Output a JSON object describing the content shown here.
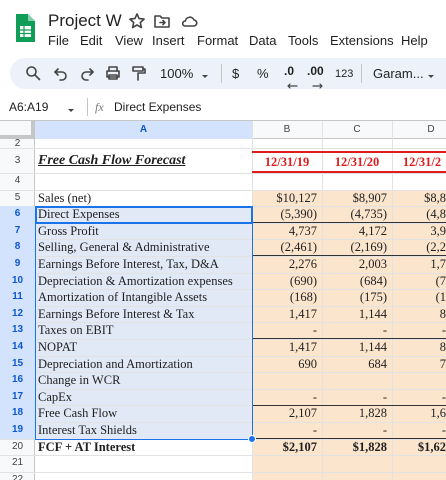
{
  "app": {
    "title": "Project W",
    "menu": [
      "File",
      "Edit",
      "View",
      "Insert",
      "Format",
      "Data",
      "Tools",
      "Extensions",
      "Help"
    ],
    "toolbar": {
      "zoom": "100%",
      "currency": "$",
      "percent": "%",
      "decrease_decimal": ".0",
      "increase_decimal": ".00",
      "number_format": "123",
      "font": "Garam..."
    },
    "name_box": "A6:A19",
    "formula_icon": "fx",
    "formula": "Direct Expenses"
  },
  "sheet": {
    "columns": [
      "A",
      "B",
      "C",
      "D"
    ],
    "row_numbers": [
      2,
      3,
      4,
      5,
      6,
      7,
      8,
      9,
      10,
      11,
      12,
      13,
      14,
      15,
      16,
      17,
      18,
      19,
      20,
      21,
      22
    ],
    "title": "Free Cash Flow Forecast",
    "dates": [
      "12/31/19",
      "12/31/20",
      "12/31/2"
    ],
    "rows": [
      {
        "label": "Sales (net)",
        "values": [
          "$10,127",
          "$8,907",
          "$8,8"
        ]
      },
      {
        "label": "Direct Expenses",
        "values": [
          "(5,390)",
          "(4,735)",
          "(4,8"
        ]
      },
      {
        "label": "Gross Profit",
        "values": [
          "4,737",
          "4,172",
          "3,9"
        ]
      },
      {
        "label": "Selling, General & Administrative",
        "values": [
          "(2,461)",
          "(2,169)",
          "(2,2"
        ]
      },
      {
        "label": "Earnings Before Interest, Tax, D&A",
        "values": [
          "2,276",
          "2,003",
          "1,7"
        ]
      },
      {
        "label": "Depreciation & Amortization expenses",
        "values": [
          "(690)",
          "(684)",
          "(7"
        ]
      },
      {
        "label": "Amortization of Intangible Assets",
        "values": [
          "(168)",
          "(175)",
          "(1"
        ]
      },
      {
        "label": "Earnings Before Interest & Tax",
        "values": [
          "1,417",
          "1,144",
          "8"
        ]
      },
      {
        "label": "Taxes on EBIT",
        "values": [
          "-",
          "-",
          "-"
        ]
      },
      {
        "label": "NOPAT",
        "values": [
          "1,417",
          "1,144",
          "8"
        ]
      },
      {
        "label": "Depreciation and Amortization",
        "values": [
          "690",
          "684",
          "7"
        ]
      },
      {
        "label": "Change in WCR",
        "values": [
          null,
          null,
          null
        ]
      },
      {
        "label": "CapEx",
        "values": [
          "-",
          "-",
          "-"
        ]
      },
      {
        "label": "Free Cash Flow",
        "values": [
          "2,107",
          "1,828",
          "1,6"
        ]
      },
      {
        "label": "Interest Tax Shields",
        "values": [
          "-",
          "-",
          "-"
        ]
      },
      {
        "label": "FCF + AT Interest",
        "values": [
          "$2,107",
          "$1,828",
          "$1,62"
        ]
      }
    ]
  }
}
